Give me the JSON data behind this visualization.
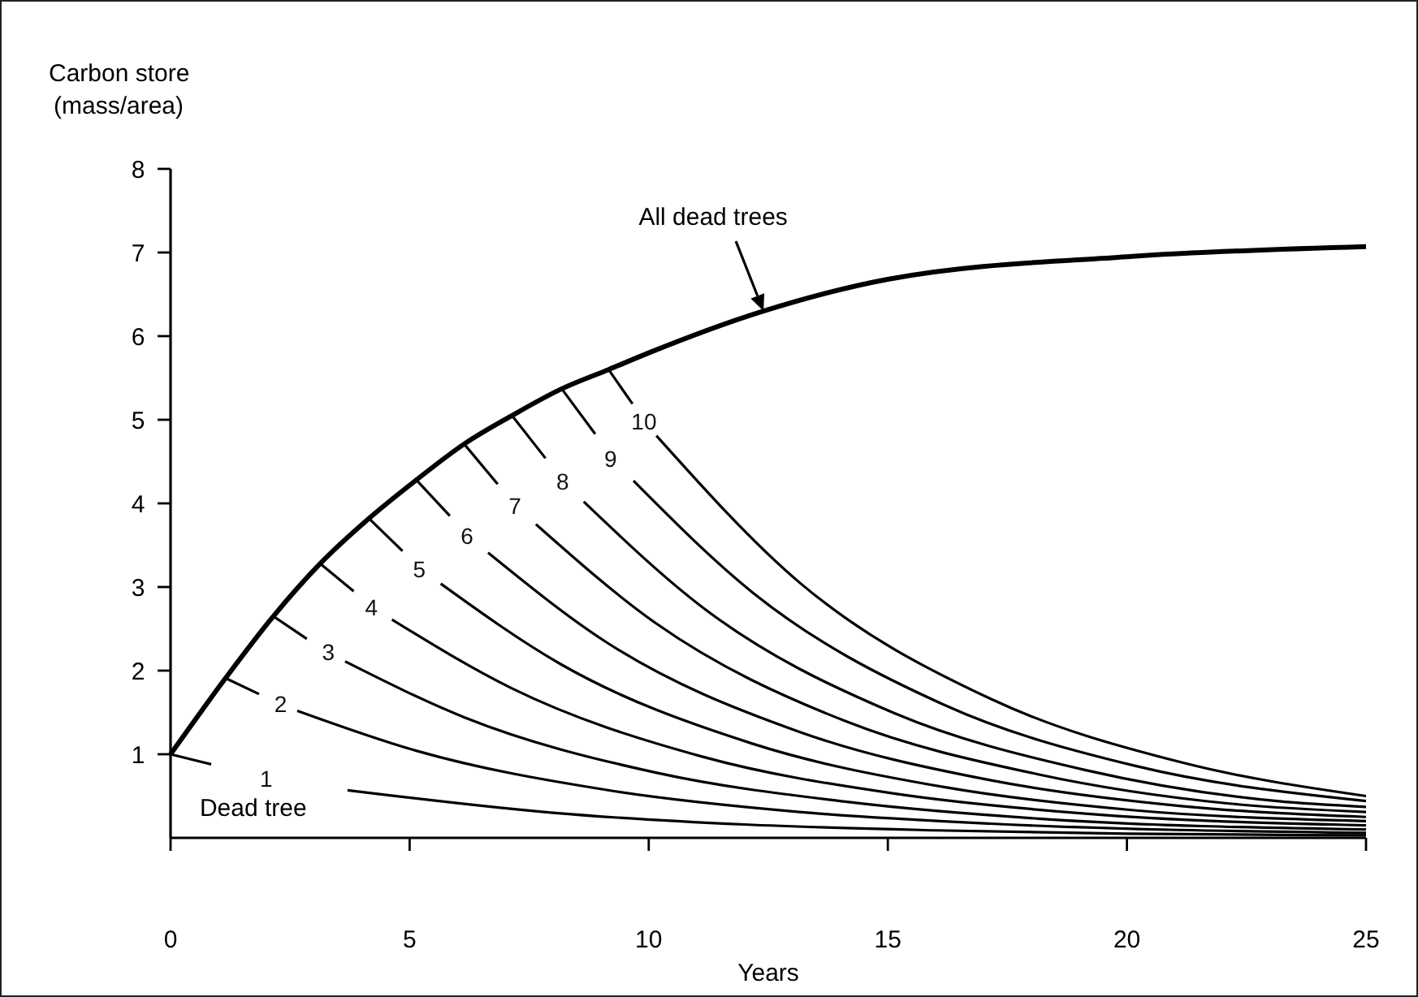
{
  "chart_data": {
    "type": "line",
    "xlabel": "Years",
    "ylabel": "Carbon store (mass/area)",
    "xlim": [
      0,
      25
    ],
    "ylim": [
      0,
      8
    ],
    "xticks": [
      0,
      5,
      10,
      15,
      20,
      25
    ],
    "yticks": [
      1,
      2,
      3,
      4,
      5,
      6,
      7,
      8
    ],
    "annotations": [
      "Dead tree"
    ],
    "series": [
      {
        "name": "All dead trees",
        "color": "#000000",
        "x": [
          0,
          1.15,
          2.15,
          3.13,
          4.15,
          5.14,
          6.14,
          7.14,
          8.18,
          9.16,
          10,
          12.4,
          15,
          20,
          25
        ],
        "values": [
          1,
          1.91,
          2.65,
          3.28,
          3.82,
          4.28,
          4.71,
          5.05,
          5.37,
          5.6,
          5.8,
          6.3,
          6.68,
          6.95,
          7.07
        ]
      },
      {
        "name": "1",
        "color": "#000000",
        "x": [
          0,
          0.85,
          2,
          3.7,
          8,
          12,
          16,
          20,
          25
        ],
        "values": [
          1,
          0.88,
          null,
          0.57,
          0.3,
          0.16,
          0.09,
          0.05,
          0.03
        ]
      },
      {
        "name": "2",
        "color": "#000000",
        "x": [
          1.15,
          1.85,
          2.3,
          2.65,
          5.15,
          9.15,
          13.15,
          17.15,
          25
        ],
        "values": [
          1.91,
          1.72,
          null,
          1.52,
          1.04,
          0.57,
          0.31,
          0.17,
          0.06
        ]
      },
      {
        "name": "3",
        "color": "#000000",
        "x": [
          2.15,
          2.85,
          3.3,
          3.65,
          6.15,
          10.15,
          14.15,
          18.15,
          25
        ],
        "values": [
          2.65,
          2.38,
          null,
          2.11,
          1.44,
          0.78,
          0.43,
          0.23,
          0.1
        ]
      },
      {
        "name": "4",
        "color": "#000000",
        "x": [
          3.13,
          3.83,
          4.2,
          4.63,
          7.13,
          11.13,
          15.13,
          19.13,
          25
        ],
        "values": [
          3.28,
          2.95,
          null,
          2.61,
          1.79,
          0.97,
          0.53,
          0.29,
          0.15
        ]
      },
      {
        "name": "5",
        "color": "#000000",
        "x": [
          4.15,
          4.85,
          5.2,
          5.65,
          8.15,
          12.15,
          16.15,
          20.15,
          25
        ],
        "values": [
          3.82,
          3.43,
          null,
          3.04,
          2.08,
          1.13,
          0.61,
          0.33,
          0.2
        ]
      },
      {
        "name": "6",
        "color": "#000000",
        "x": [
          5.14,
          5.84,
          6.2,
          6.64,
          9.14,
          13.14,
          17.14,
          21.14,
          25
        ],
        "values": [
          4.28,
          3.85,
          null,
          3.41,
          2.33,
          1.27,
          0.69,
          0.38,
          0.25
        ]
      },
      {
        "name": "7",
        "color": "#000000",
        "x": [
          6.14,
          6.84,
          7.2,
          7.64,
          10.14,
          14.14,
          18.14,
          22.14,
          25
        ],
        "values": [
          4.71,
          4.23,
          null,
          3.75,
          2.57,
          1.39,
          0.76,
          0.41,
          0.31
        ]
      },
      {
        "name": "8",
        "color": "#000000",
        "x": [
          7.14,
          7.84,
          8.2,
          8.64,
          11.14,
          15.14,
          19.14,
          23.14,
          25
        ],
        "values": [
          5.05,
          4.54,
          null,
          4.02,
          2.75,
          1.49,
          0.81,
          0.44,
          0.37
        ]
      },
      {
        "name": "9",
        "color": "#000000",
        "x": [
          8.18,
          8.88,
          9.2,
          9.68,
          12.18,
          16.18,
          20.18,
          25
        ],
        "values": [
          5.37,
          4.83,
          null,
          4.27,
          2.93,
          1.59,
          0.86,
          0.44
        ]
      },
      {
        "name": "10",
        "color": "#000000",
        "x": [
          9.16,
          9.66,
          9.9,
          10.16,
          13.16,
          17.16,
          21.16,
          25
        ],
        "values": [
          5.6,
          5.19,
          null,
          4.81,
          3.05,
          1.66,
          0.9,
          0.5
        ]
      }
    ]
  }
}
